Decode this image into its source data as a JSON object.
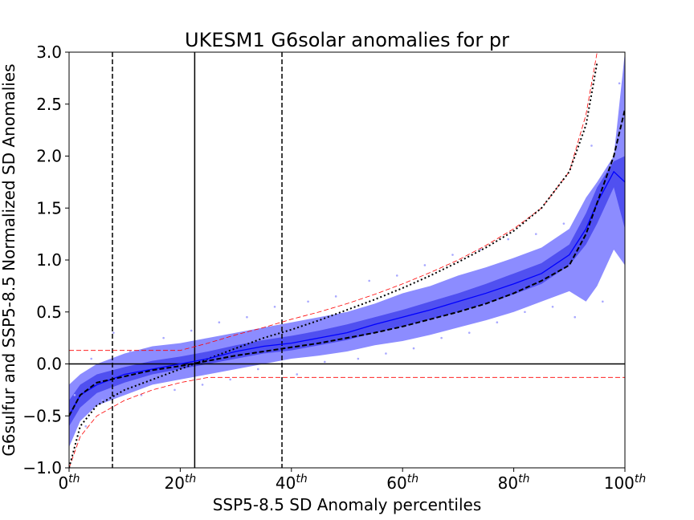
{
  "chart_data": {
    "type": "line",
    "title": "UKESM1 G6solar anomalies for pr",
    "xlabel": "SSP5-8.5 SD Anomaly percentiles",
    "ylabel": "G6sulfur and SSP5-8.5 Normalized SD Anomalies",
    "xlim": [
      0,
      100
    ],
    "ylim": [
      -1,
      3
    ],
    "xticks": [
      {
        "value": 0,
        "label": "0th"
      },
      {
        "value": 20,
        "label": "20th"
      },
      {
        "value": 40,
        "label": "40th"
      },
      {
        "value": 60,
        "label": "60th"
      },
      {
        "value": 80,
        "label": "80th"
      },
      {
        "value": 100,
        "label": "100th"
      }
    ],
    "yticks": [
      {
        "value": -1,
        "label": "−1.0"
      },
      {
        "value": -0.5,
        "label": "−0.5"
      },
      {
        "value": 0,
        "label": "0.0"
      },
      {
        "value": 0.5,
        "label": "0.5"
      },
      {
        "value": 1,
        "label": "1.0"
      },
      {
        "value": 1.5,
        "label": "1.5"
      },
      {
        "value": 2,
        "label": "2.0"
      },
      {
        "value": 2.5,
        "label": "2.5"
      },
      {
        "value": 3,
        "label": "3.0"
      }
    ],
    "x": [
      0,
      2,
      5,
      10,
      15,
      20,
      25,
      30,
      35,
      40,
      45,
      50,
      55,
      60,
      65,
      70,
      75,
      80,
      85,
      90,
      93,
      95,
      98,
      100
    ],
    "bands": [
      {
        "color": "#8c8cff",
        "low": [
          -0.8,
          -0.55,
          -0.4,
          -0.3,
          -0.2,
          -0.15,
          -0.1,
          -0.05,
          0.0,
          0.05,
          0.08,
          0.12,
          0.18,
          0.22,
          0.28,
          0.35,
          0.42,
          0.5,
          0.6,
          0.7,
          0.6,
          0.75,
          1.1,
          0.95
        ],
        "high": [
          -0.2,
          -0.1,
          0.0,
          0.1,
          0.17,
          0.2,
          0.25,
          0.3,
          0.35,
          0.4,
          0.45,
          0.5,
          0.58,
          0.68,
          0.75,
          0.85,
          0.93,
          1.02,
          1.12,
          1.3,
          1.6,
          1.75,
          2.0,
          3.0
        ]
      },
      {
        "color": "#5050f0",
        "low": [
          -0.6,
          -0.42,
          -0.28,
          -0.18,
          -0.1,
          -0.05,
          0.0,
          0.05,
          0.1,
          0.13,
          0.18,
          0.23,
          0.3,
          0.36,
          0.43,
          0.5,
          0.58,
          0.67,
          0.77,
          0.95,
          1.15,
          1.35,
          1.7,
          1.3
        ],
        "high": [
          -0.35,
          -0.2,
          -0.1,
          -0.03,
          0.03,
          0.07,
          0.12,
          0.18,
          0.23,
          0.27,
          0.32,
          0.38,
          0.45,
          0.52,
          0.6,
          0.68,
          0.77,
          0.87,
          0.97,
          1.15,
          1.45,
          1.7,
          1.95,
          2.0
        ]
      }
    ],
    "scatter": {
      "color": "#a8a8ff",
      "x": [
        1,
        3,
        4,
        6,
        8,
        11,
        13,
        17,
        19,
        22,
        24,
        27,
        29,
        32,
        34,
        37,
        41,
        43,
        46,
        48,
        52,
        54,
        57,
        59,
        62,
        64,
        67,
        69,
        72,
        74,
        77,
        79,
        82,
        84,
        87,
        89,
        91,
        94,
        96,
        99
      ],
      "y": [
        -0.3,
        -0.6,
        0.05,
        -0.35,
        0.3,
        0.12,
        -0.3,
        0.25,
        -0.25,
        0.32,
        -0.2,
        0.4,
        -0.15,
        0.45,
        -0.05,
        0.55,
        -0.1,
        0.6,
        0.02,
        0.65,
        0.05,
        0.8,
        0.1,
        0.85,
        0.15,
        0.95,
        0.25,
        1.05,
        0.3,
        1.1,
        0.4,
        1.2,
        0.5,
        1.25,
        0.55,
        1.35,
        0.45,
        2.1,
        0.6,
        2.7
      ]
    },
    "series": [
      {
        "color": "#ff0000",
        "style": "dashed",
        "width": 0.8,
        "values": [
          0.13,
          0.13,
          0.13,
          0.13,
          0.13,
          0.13,
          0.2,
          0.28,
          0.35,
          0.43,
          0.5,
          0.58,
          0.67,
          0.77,
          0.88,
          1.0,
          1.14,
          1.3,
          1.5,
          1.85,
          2.4,
          3.0,
          null,
          null
        ]
      },
      {
        "color": "#ff0000",
        "style": "dashed",
        "width": 0.8,
        "values": [
          -1.0,
          -0.7,
          -0.5,
          -0.35,
          -0.25,
          -0.18,
          -0.13,
          -0.13,
          -0.13,
          -0.13,
          -0.13,
          -0.13,
          -0.13,
          -0.13,
          -0.13,
          -0.13,
          -0.13,
          -0.13,
          -0.13,
          -0.13,
          -0.13,
          -0.13,
          -0.13,
          -0.13
        ]
      },
      {
        "color": "#000000",
        "style": "dotted",
        "width": 2,
        "values": [
          -1.0,
          -0.6,
          -0.4,
          -0.25,
          -0.15,
          -0.05,
          0.05,
          0.15,
          0.25,
          0.33,
          0.42,
          0.52,
          0.62,
          0.73,
          0.85,
          0.98,
          1.12,
          1.28,
          1.5,
          1.85,
          2.3,
          2.9,
          null,
          null
        ]
      },
      {
        "color": "#0000ff",
        "style": "solid",
        "width": 1.3,
        "values": [
          -0.5,
          -0.3,
          -0.2,
          -0.1,
          -0.05,
          0.0,
          0.05,
          0.12,
          0.17,
          0.2,
          0.25,
          0.3,
          0.38,
          0.45,
          0.52,
          0.6,
          0.68,
          0.77,
          0.87,
          1.05,
          1.3,
          1.55,
          1.85,
          1.75
        ]
      },
      {
        "color": "#000000",
        "style": "dashed",
        "width": 2,
        "values": [
          -0.5,
          -0.3,
          -0.18,
          -0.12,
          -0.06,
          -0.02,
          0.03,
          0.08,
          0.12,
          0.16,
          0.2,
          0.25,
          0.3,
          0.36,
          0.43,
          0.5,
          0.58,
          0.68,
          0.8,
          0.95,
          1.25,
          1.55,
          2.0,
          2.45
        ]
      }
    ],
    "vlines": [
      {
        "x": 7.8,
        "style": "dashed"
      },
      {
        "x": 22.6,
        "style": "solid"
      },
      {
        "x": 38.3,
        "style": "dashed"
      }
    ],
    "hlines": [
      {
        "y": 0,
        "style": "solid"
      }
    ]
  }
}
